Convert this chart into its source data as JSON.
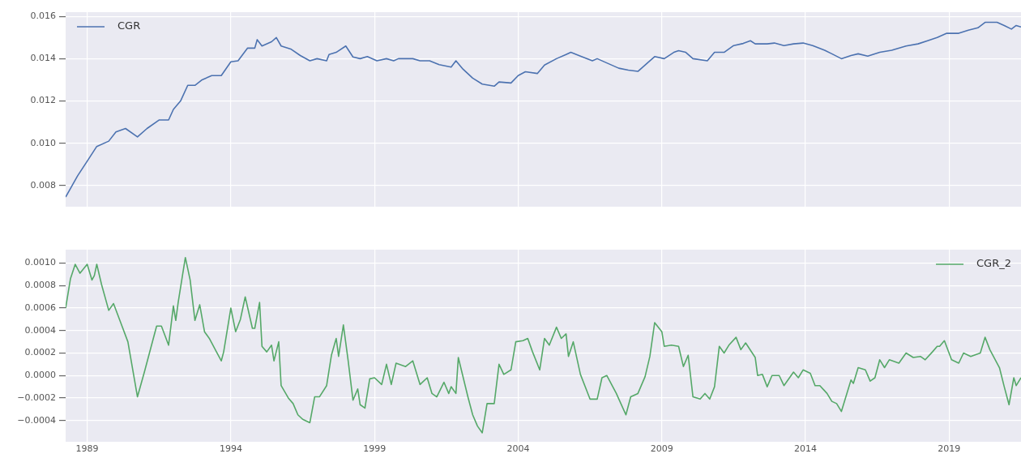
{
  "chart_data": [
    {
      "type": "line",
      "legend": "top left",
      "grid": true,
      "tick_labels": "y",
      "x": [
        "1988-04",
        "1988-09",
        "1989-01",
        "1989-05",
        "1989-10",
        "1990-01",
        "1990-05",
        "1990-10",
        "1991-02",
        "1991-07",
        "1991-11",
        "1992-01",
        "1992-04",
        "1992-07",
        "1992-10",
        "1993-01",
        "1993-05",
        "1993-09",
        "1994-01",
        "1994-04",
        "1994-08",
        "1994-11",
        "1994-12",
        "1995-02",
        "1995-06",
        "1995-08",
        "1995-10",
        "1996-02",
        "1996-06",
        "1996-10",
        "1997-01",
        "1997-05",
        "1997-06",
        "1997-09",
        "1998-01",
        "1998-04",
        "1998-07",
        "1998-10",
        "1999-02",
        "1999-06",
        "1999-09",
        "1999-11",
        "2000-05",
        "2000-08",
        "2000-12",
        "2001-04",
        "2001-09",
        "2001-11",
        "2002-02",
        "2002-06",
        "2002-10",
        "2003-03",
        "2003-05",
        "2003-10",
        "2004-01",
        "2004-04",
        "2004-09",
        "2004-12",
        "2005-05",
        "2005-09",
        "2005-11",
        "2006-03",
        "2006-08",
        "2006-10",
        "2007-02",
        "2007-07",
        "2007-11",
        "2008-03",
        "2008-07",
        "2008-10",
        "2009-02",
        "2009-06",
        "2009-08",
        "2009-11",
        "2010-02",
        "2010-08",
        "2010-11",
        "2011-03",
        "2011-07",
        "2011-11",
        "2012-02",
        "2012-04",
        "2012-09",
        "2012-12",
        "2013-04",
        "2013-08",
        "2013-12",
        "2014-04",
        "2014-09",
        "2014-12",
        "2015-04",
        "2015-08",
        "2015-11",
        "2016-03",
        "2016-08",
        "2017-01",
        "2017-07",
        "2017-12",
        "2018-04",
        "2018-08",
        "2018-12",
        "2019-05",
        "2019-09",
        "2020-01",
        "2020-04",
        "2020-09",
        "2020-12",
        "2021-03",
        "2021-05",
        "2021-07"
      ],
      "series": [
        {
          "name": "CGR",
          "color": "#4c72b0",
          "values": [
            0.00746,
            0.00846,
            0.00915,
            0.00985,
            0.0101,
            0.01054,
            0.0107,
            0.0103,
            0.0107,
            0.0111,
            0.0111,
            0.0116,
            0.012,
            0.01274,
            0.01274,
            0.013,
            0.0132,
            0.0132,
            0.01385,
            0.0139,
            0.0145,
            0.0145,
            0.0149,
            0.0146,
            0.0148,
            0.015,
            0.0146,
            0.01446,
            0.01415,
            0.0139,
            0.014,
            0.0139,
            0.0142,
            0.0143,
            0.0146,
            0.01408,
            0.014,
            0.0141,
            0.0139,
            0.014,
            0.0139,
            0.014,
            0.014,
            0.0139,
            0.0139,
            0.01372,
            0.0136,
            0.0139,
            0.0135,
            0.01308,
            0.0128,
            0.0127,
            0.0129,
            0.01285,
            0.0132,
            0.01338,
            0.0133,
            0.0137,
            0.014,
            0.0142,
            0.0143,
            0.01412,
            0.0139,
            0.014,
            0.0138,
            0.01355,
            0.01346,
            0.0134,
            0.0138,
            0.0141,
            0.014,
            0.0143,
            0.01438,
            0.0143,
            0.014,
            0.0139,
            0.0143,
            0.0143,
            0.01462,
            0.01472,
            0.01485,
            0.0147,
            0.0147,
            0.01474,
            0.01462,
            0.0147,
            0.01474,
            0.01462,
            0.0144,
            0.01423,
            0.014,
            0.01415,
            0.01423,
            0.01412,
            0.0143,
            0.0144,
            0.0146,
            0.0147,
            0.01485,
            0.015,
            0.0152,
            0.0152,
            0.01535,
            0.01546,
            0.01572,
            0.01572,
            0.01557,
            0.0154,
            0.01557,
            0.0155
          ]
        }
      ],
      "xlim": [
        "1988-04",
        "2021-07"
      ],
      "xticks": [
        "1989",
        "1994",
        "1999",
        "2004",
        "2009",
        "2014",
        "2019"
      ],
      "ylim": [
        0.007,
        0.0162
      ],
      "yticks": [
        {
          "value": 0.008,
          "label": "0.008"
        },
        {
          "value": 0.01,
          "label": "0.010"
        },
        {
          "value": 0.012,
          "label": "0.012"
        },
        {
          "value": 0.014,
          "label": "0.014"
        },
        {
          "value": 0.016,
          "label": "0.016"
        }
      ]
    },
    {
      "type": "line",
      "legend": "top right",
      "grid": true,
      "x": [
        "1988-04",
        "1988-06",
        "1988-08",
        "1988-10",
        "1989-01",
        "1989-03",
        "1989-04",
        "1989-05",
        "1989-07",
        "1989-10",
        "1989-12",
        "1990-03",
        "1990-06",
        "1990-10",
        "1991-01",
        "1991-03",
        "1991-06",
        "1991-08",
        "1991-11",
        "1992-01",
        "1992-02",
        "1992-03",
        "1992-06",
        "1992-08",
        "1992-10",
        "1992-12",
        "1993-02",
        "1993-04",
        "1993-07",
        "1993-09",
        "1993-10",
        "1994-01",
        "1994-03",
        "1994-05",
        "1994-07",
        "1994-10",
        "1994-11",
        "1995-01",
        "1995-02",
        "1995-04",
        "1995-06",
        "1995-07",
        "1995-09",
        "1995-10",
        "1996-01",
        "1996-03",
        "1996-05",
        "1996-07",
        "1996-10",
        "1996-12",
        "1997-02",
        "1997-05",
        "1997-07",
        "1997-09",
        "1997-10",
        "1997-12",
        "1998-02",
        "1998-04",
        "1998-06",
        "1998-07",
        "1998-09",
        "1998-11",
        "1999-01",
        "1999-04",
        "1999-06",
        "1999-08",
        "1999-10",
        "2000-02",
        "2000-05",
        "2000-08",
        "2000-11",
        "2001-01",
        "2001-03",
        "2001-06",
        "2001-08",
        "2001-09",
        "2001-11",
        "2001-12",
        "2002-04",
        "2002-06",
        "2002-08",
        "2002-10",
        "2002-12",
        "2003-03",
        "2003-05",
        "2003-07",
        "2003-10",
        "2003-12",
        "2004-03",
        "2004-05",
        "2004-07",
        "2004-10",
        "2004-12",
        "2005-02",
        "2005-05",
        "2005-07",
        "2005-09",
        "2005-10",
        "2005-12",
        "2006-03",
        "2006-07",
        "2006-10",
        "2006-12",
        "2007-02",
        "2007-06",
        "2007-10",
        "2007-12",
        "2008-03",
        "2008-06",
        "2008-08",
        "2008-10",
        "2009-01",
        "2009-02",
        "2009-05",
        "2009-08",
        "2009-10",
        "2009-12",
        "2010-02",
        "2010-05",
        "2010-07",
        "2010-09",
        "2010-11",
        "2011-01",
        "2011-03",
        "2011-05",
        "2011-08",
        "2011-10",
        "2011-12",
        "2012-04",
        "2012-05",
        "2012-07",
        "2012-09",
        "2012-11",
        "2013-02",
        "2013-04",
        "2013-08",
        "2013-10",
        "2013-12",
        "2014-03",
        "2014-05",
        "2014-07",
        "2014-10",
        "2014-12",
        "2015-02",
        "2015-04",
        "2015-08",
        "2015-09",
        "2015-11",
        "2016-02",
        "2016-04",
        "2016-06",
        "2016-08",
        "2016-10",
        "2016-12",
        "2017-04",
        "2017-07",
        "2017-10",
        "2018-01",
        "2018-03",
        "2018-06",
        "2018-08",
        "2018-09",
        "2018-11",
        "2019-02",
        "2019-05",
        "2019-07",
        "2019-10",
        "2020-02",
        "2020-04",
        "2020-06",
        "2020-10",
        "2020-12",
        "2021-02",
        "2021-04",
        "2021-05",
        "2021-07"
      ],
      "series": [
        {
          "name": "CGR_2",
          "color": "#55a868",
          "values": [
            0.0006,
            0.00086,
            0.00099,
            0.00091,
            0.00099,
            0.00085,
            0.00089,
            0.00099,
            0.00081,
            0.00058,
            0.00064,
            0.00047,
            0.0003,
            -0.00019,
            4e-05,
            0.0002,
            0.00044,
            0.00044,
            0.00027,
            0.00062,
            0.00049,
            0.00065,
            0.00105,
            0.00085,
            0.00049,
            0.00063,
            0.00039,
            0.00033,
            0.00021,
            0.00013,
            0.00021,
            0.0006,
            0.00039,
            0.0005,
            0.0007,
            0.00042,
            0.00042,
            0.00065,
            0.00026,
            0.00021,
            0.00027,
            0.00013,
            0.0003,
            -9e-05,
            -0.0002,
            -0.00025,
            -0.00035,
            -0.00039,
            -0.00042,
            -0.00019,
            -0.00019,
            -9e-05,
            0.00018,
            0.00033,
            0.00017,
            0.00045,
            0.00013,
            -0.00022,
            -0.00012,
            -0.00026,
            -0.00029,
            -3e-05,
            -2e-05,
            -8e-05,
            0.0001,
            -8e-05,
            0.00011,
            8e-05,
            0.00013,
            -8e-05,
            -2e-05,
            -0.00016,
            -0.00019,
            -6e-05,
            -0.00016,
            -0.0001,
            -0.00016,
            0.00016,
            -0.00019,
            -0.00035,
            -0.00045,
            -0.00051,
            -0.00025,
            -0.00025,
            0.0001,
            1e-05,
            5e-05,
            0.0003,
            0.00031,
            0.00033,
            0.00021,
            5e-05,
            0.00033,
            0.00027,
            0.00043,
            0.00033,
            0.00037,
            0.00017,
            0.0003,
            1e-05,
            -0.00021,
            -0.00021,
            -2e-05,
            0.0,
            -0.00016,
            -0.00035,
            -0.00019,
            -0.00016,
            -1e-05,
            0.00017,
            0.00047,
            0.00039,
            0.00026,
            0.00027,
            0.00026,
            8e-05,
            0.00018,
            -0.00019,
            -0.00021,
            -0.00016,
            -0.00021,
            -0.0001,
            0.00026,
            0.0002,
            0.00027,
            0.00034,
            0.00023,
            0.00029,
            0.00016,
            0.0,
            1e-05,
            -0.0001,
            0.0,
            0.0,
            -9e-05,
            3e-05,
            -2e-05,
            5e-05,
            2e-05,
            -9e-05,
            -9e-05,
            -0.00016,
            -0.00023,
            -0.00025,
            -0.00032,
            -4e-05,
            -7e-05,
            7e-05,
            5e-05,
            -5e-05,
            -2e-05,
            0.00014,
            7e-05,
            0.00014,
            0.00011,
            0.0002,
            0.00016,
            0.00017,
            0.00014,
            0.00021,
            0.00026,
            0.00026,
            0.00031,
            0.00014,
            0.00011,
            0.0002,
            0.00017,
            0.0002,
            0.00034,
            0.00023,
            7e-05,
            -0.0001,
            -0.00026,
            -2e-05,
            -9e-05,
            -2e-05
          ]
        }
      ],
      "xlim": [
        "1988-04",
        "2021-07"
      ],
      "xticks": [
        "1989",
        "1994",
        "1999",
        "2004",
        "2009",
        "2014",
        "2019"
      ],
      "ylim": [
        -0.00059,
        0.00112
      ],
      "yticks": [
        {
          "value": -0.0004,
          "label": "−0.0004"
        },
        {
          "value": -0.0002,
          "label": "−0.0002"
        },
        {
          "value": 0,
          "label": "0.0000"
        },
        {
          "value": 0.0002,
          "label": "0.0002"
        },
        {
          "value": 0.0004,
          "label": "0.0004"
        },
        {
          "value": 0.0006,
          "label": "0.0006"
        },
        {
          "value": 0.0008,
          "label": "0.0008"
        },
        {
          "value": 0.001,
          "label": "0.0010"
        }
      ]
    }
  ]
}
